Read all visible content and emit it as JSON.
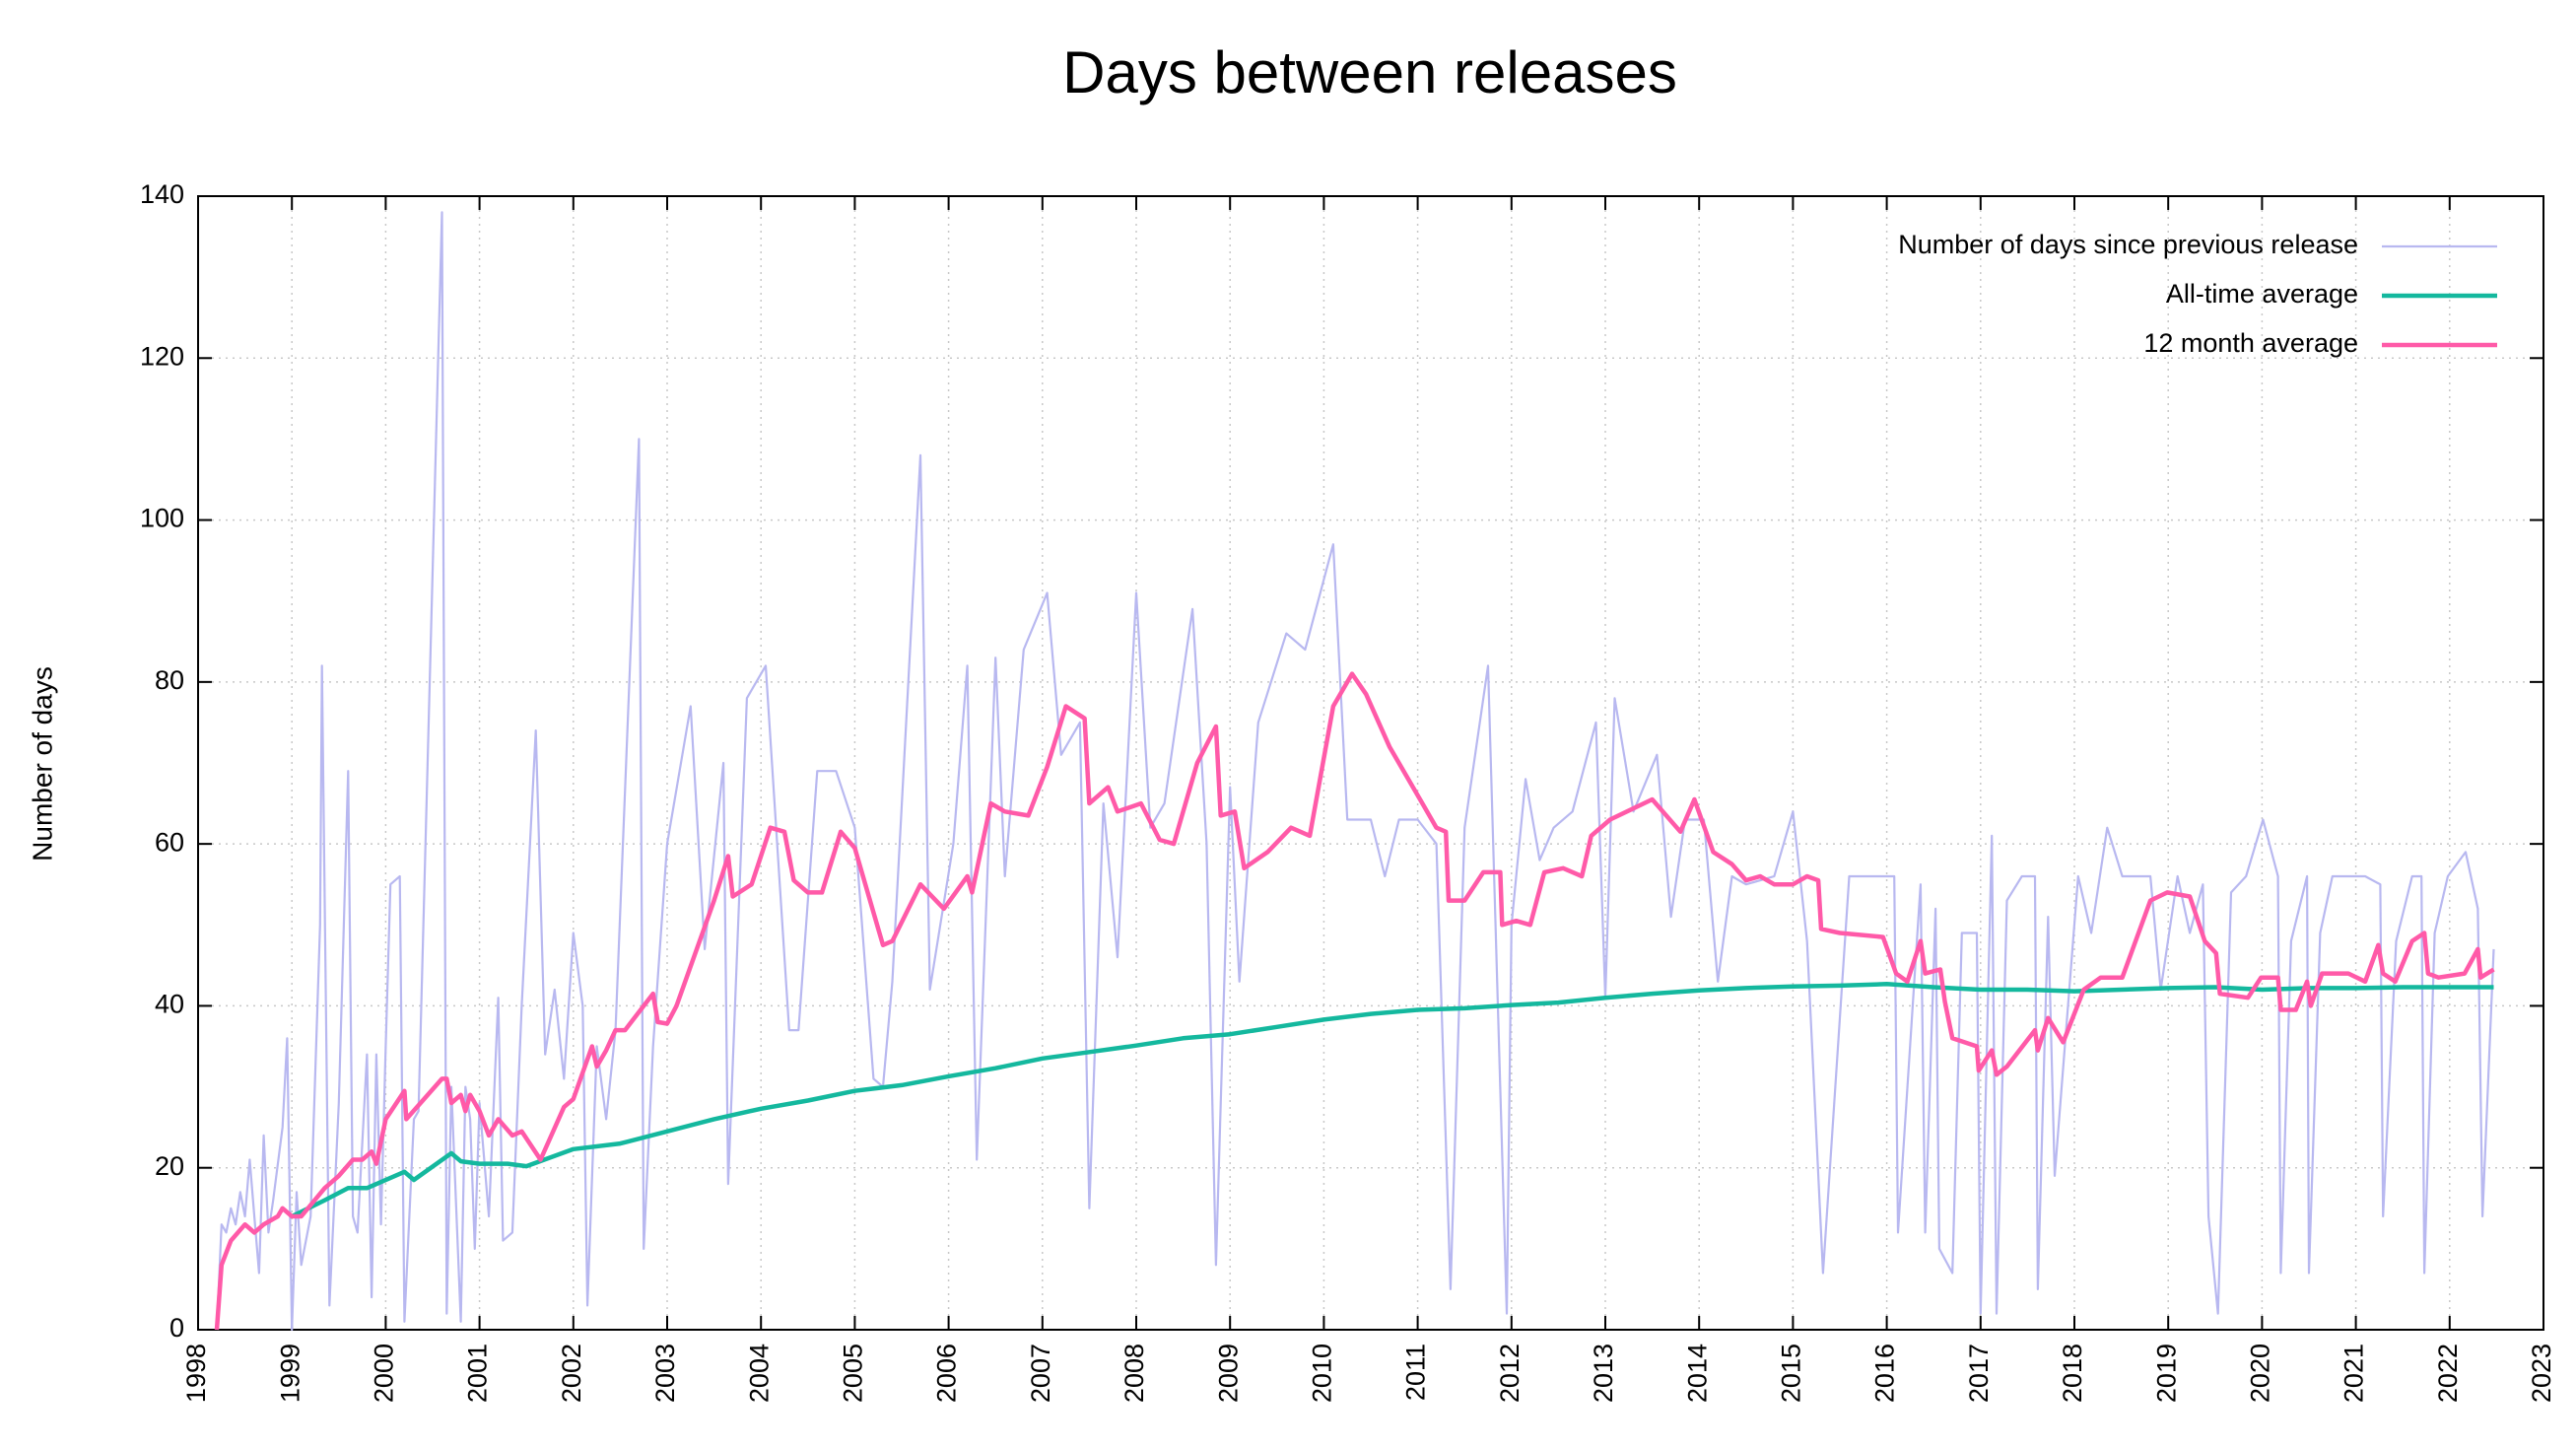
{
  "chart_data": {
    "type": "line",
    "title": "Days between releases",
    "y_label": "Number of days",
    "xlim": [
      1998,
      2023
    ],
    "xticks": [
      1998,
      1999,
      2000,
      2001,
      2002,
      2003,
      2004,
      2005,
      2006,
      2007,
      2008,
      2009,
      2010,
      2011,
      2012,
      2013,
      2014,
      2015,
      2016,
      2017,
      2018,
      2019,
      2020,
      2021,
      2022,
      2023
    ],
    "ylim": [
      0,
      140
    ],
    "yticks": [
      0,
      20,
      40,
      60,
      80,
      100,
      120,
      140
    ],
    "grid": true,
    "legend": "top-right",
    "series": [
      {
        "name": "Number of days since previous release",
        "color": "#b8b8f0",
        "x": [
          1998.2,
          1998.25,
          1998.3,
          1998.35,
          1998.4,
          1998.45,
          1998.5,
          1998.55,
          1998.6,
          1998.65,
          1998.7,
          1998.75,
          1998.8,
          1998.9,
          1998.95,
          1999.0,
          1999.05,
          1999.1,
          1999.2,
          1999.3,
          1999.32,
          1999.4,
          1999.5,
          1999.6,
          1999.65,
          1999.7,
          1999.8,
          1999.85,
          1999.9,
          1999.95,
          2000.0,
          2000.05,
          2000.15,
          2000.2,
          2000.3,
          2000.35,
          2000.6,
          2000.65,
          2000.7,
          2000.8,
          2000.85,
          2000.9,
          2000.95,
          2001.0,
          2001.1,
          2001.2,
          2001.25,
          2001.35,
          2001.45,
          2001.6,
          2001.7,
          2001.8,
          2001.9,
          2002.0,
          2002.1,
          2002.15,
          2002.25,
          2002.35,
          2002.45,
          2002.7,
          2002.75,
          2002.85,
          2003.0,
          2003.25,
          2003.4,
          2003.6,
          2003.65,
          2003.85,
          2004.05,
          2004.3,
          2004.4,
          2004.6,
          2004.8,
          2005.0,
          2005.2,
          2005.3,
          2005.4,
          2005.7,
          2005.8,
          2006.05,
          2006.2,
          2006.3,
          2006.5,
          2006.6,
          2006.8,
          2007.05,
          2007.2,
          2007.4,
          2007.5,
          2007.65,
          2007.8,
          2008.0,
          2008.15,
          2008.3,
          2008.6,
          2008.75,
          2008.85,
          2009.0,
          2009.1,
          2009.3,
          2009.6,
          2009.8,
          2010.1,
          2010.25,
          2010.5,
          2010.65,
          2010.8,
          2011.0,
          2011.2,
          2011.35,
          2011.5,
          2011.75,
          2011.95,
          2012.0,
          2012.15,
          2012.3,
          2012.45,
          2012.65,
          2012.9,
          2013.0,
          2013.1,
          2013.3,
          2013.55,
          2013.7,
          2013.85,
          2014.05,
          2014.2,
          2014.35,
          2014.5,
          2014.8,
          2015.0,
          2015.15,
          2015.32,
          2015.6,
          2016.08,
          2016.12,
          2016.36,
          2016.41,
          2016.52,
          2016.56,
          2016.7,
          2016.8,
          2016.96,
          2017.0,
          2017.12,
          2017.17,
          2017.28,
          2017.44,
          2017.58,
          2017.61,
          2017.72,
          2017.79,
          2018.04,
          2018.18,
          2018.35,
          2018.51,
          2018.81,
          2018.92,
          2019.1,
          2019.23,
          2019.37,
          2019.43,
          2019.53,
          2019.67,
          2019.83,
          2020.01,
          2020.17,
          2020.2,
          2020.31,
          2020.48,
          2020.5,
          2020.62,
          2020.75,
          2021.1,
          2021.26,
          2021.29,
          2021.43,
          2021.6,
          2021.7,
          2021.73,
          2021.84,
          2021.98,
          2022.17,
          2022.3,
          2022.35,
          2022.47
        ],
        "values": [
          0,
          13,
          12,
          15,
          13,
          17,
          14,
          21,
          14,
          7,
          24,
          12,
          16,
          25,
          36,
          0,
          17,
          8,
          14,
          50,
          82,
          3,
          28,
          69,
          14,
          12,
          34,
          4,
          34,
          13,
          35,
          55,
          56,
          1,
          26,
          27,
          138,
          2,
          30,
          1,
          30,
          26,
          10,
          28,
          14,
          41,
          11,
          12,
          40,
          74,
          34,
          42,
          31,
          49,
          40,
          3,
          35,
          26,
          37,
          110,
          10,
          35,
          60,
          77,
          47,
          70,
          18,
          78,
          82,
          37,
          37,
          69,
          69,
          62,
          31,
          30,
          43,
          108,
          42,
          60,
          82,
          21,
          83,
          56,
          84,
          91,
          71,
          75,
          15,
          65,
          46,
          91,
          62,
          65,
          89,
          60,
          8,
          67,
          43,
          75,
          86,
          84,
          97,
          63,
          63,
          56,
          63,
          63,
          60,
          5,
          62,
          82,
          2,
          50,
          68,
          58,
          62,
          64,
          75,
          41,
          78,
          64,
          71,
          51,
          63,
          63,
          43,
          56,
          55,
          56,
          64,
          48,
          7,
          56,
          56,
          12,
          55,
          12,
          52,
          10,
          7,
          49,
          49,
          2,
          61,
          2,
          53,
          56,
          56,
          5,
          51,
          19,
          56,
          49,
          62,
          56,
          56,
          42,
          56,
          49,
          55,
          14,
          2,
          54,
          56,
          63,
          56,
          7,
          48,
          56,
          7,
          49,
          56,
          56,
          55,
          14,
          48,
          56,
          56,
          7,
          49,
          56,
          59,
          52,
          14,
          47
        ]
      },
      {
        "name": "All-time average",
        "color": "#14b89e",
        "x": [
          1999.0,
          1999.35,
          1999.6,
          1999.8,
          2000.2,
          2000.3,
          2000.7,
          2000.8,
          2001.0,
          2001.3,
          2001.5,
          2002.0,
          2002.5,
          2003.0,
          2003.5,
          2004.0,
          2004.5,
          2005.0,
          2005.5,
          2006.0,
          2006.5,
          2007.0,
          2007.5,
          2008.0,
          2008.5,
          2009.0,
          2009.5,
          2010.0,
          2010.5,
          2011.0,
          2011.5,
          2012.0,
          2012.5,
          2013.0,
          2013.5,
          2014.0,
          2014.5,
          2015.0,
          2015.5,
          2016.0,
          2016.5,
          2017.0,
          2017.5,
          2018.0,
          2018.5,
          2019.0,
          2019.5,
          2020.0,
          2020.5,
          2021.0,
          2021.5,
          2022.0,
          2022.47
        ],
        "values": [
          14,
          16,
          17.5,
          17.5,
          19.5,
          18.5,
          21.8,
          20.8,
          20.5,
          20.5,
          20.2,
          22.3,
          23,
          24.5,
          26,
          27.3,
          28.3,
          29.5,
          30.2,
          31.3,
          32.3,
          33.5,
          34.3,
          35.1,
          36,
          36.5,
          37.4,
          38.3,
          39,
          39.5,
          39.7,
          40.1,
          40.4,
          41,
          41.5,
          41.9,
          42.2,
          42.4,
          42.5,
          42.7,
          42.3,
          42,
          42,
          41.8,
          42,
          42.2,
          42.3,
          42,
          42.2,
          42.2,
          42.3,
          42.3,
          42.3
        ]
      },
      {
        "name": "12 month average",
        "color": "#ff5aa8",
        "x": [
          1998.2,
          1998.25,
          1998.35,
          1998.5,
          1998.6,
          1998.7,
          1998.85,
          1998.9,
          1999.0,
          1999.1,
          1999.35,
          1999.5,
          1999.65,
          1999.75,
          1999.85,
          1999.9,
          2000.0,
          2000.2,
          2000.22,
          2000.6,
          2000.65,
          2000.7,
          2000.8,
          2000.85,
          2000.9,
          2001.0,
          2001.1,
          2001.2,
          2001.35,
          2001.45,
          2001.65,
          2001.9,
          2002.0,
          2002.2,
          2002.25,
          2002.35,
          2002.45,
          2002.55,
          2002.85,
          2002.9,
          2003.0,
          2003.1,
          2003.5,
          2003.65,
          2003.7,
          2003.9,
          2004.1,
          2004.25,
          2004.35,
          2004.5,
          2004.65,
          2004.85,
          2005.0,
          2005.3,
          2005.4,
          2005.7,
          2005.95,
          2006.2,
          2006.25,
          2006.45,
          2006.6,
          2006.85,
          2007.05,
          2007.25,
          2007.45,
          2007.5,
          2007.7,
          2007.8,
          2008.05,
          2008.25,
          2008.4,
          2008.65,
          2008.85,
          2008.9,
          2009.05,
          2009.15,
          2009.4,
          2009.65,
          2009.85,
          2010.1,
          2010.3,
          2010.45,
          2010.7,
          2011.05,
          2011.2,
          2011.3,
          2011.33,
          2011.5,
          2011.7,
          2011.88,
          2011.9,
          2012.05,
          2012.2,
          2012.35,
          2012.55,
          2012.75,
          2012.85,
          2013.05,
          2013.5,
          2013.8,
          2013.95,
          2014.15,
          2014.35,
          2014.5,
          2014.65,
          2014.8,
          2015.0,
          2015.15,
          2015.27,
          2015.3,
          2015.5,
          2015.96,
          2016.1,
          2016.22,
          2016.36,
          2016.41,
          2016.57,
          2016.62,
          2016.7,
          2016.96,
          2016.98,
          2017.12,
          2017.17,
          2017.28,
          2017.58,
          2017.61,
          2017.72,
          2017.88,
          2018.1,
          2018.28,
          2018.51,
          2018.81,
          2018.99,
          2019.23,
          2019.39,
          2019.51,
          2019.55,
          2019.85,
          2019.99,
          2020.17,
          2020.2,
          2020.36,
          2020.48,
          2020.52,
          2020.64,
          2020.92,
          2021.1,
          2021.24,
          2021.29,
          2021.42,
          2021.6,
          2021.73,
          2021.77,
          2021.88,
          2022.16,
          2022.3,
          2022.33,
          2022.47
        ],
        "values": [
          0,
          8,
          11,
          13,
          12,
          13,
          14,
          15,
          14,
          14,
          17.5,
          19,
          21,
          21,
          22,
          20.5,
          26,
          29.5,
          26,
          31,
          31,
          28,
          29,
          27,
          29,
          27,
          24,
          26,
          24,
          24.5,
          21,
          27.5,
          28.5,
          35,
          32.5,
          34.5,
          37,
          37,
          41.5,
          38,
          37.8,
          40,
          53,
          58.5,
          53.5,
          55,
          62,
          61.5,
          55.5,
          54,
          54,
          61.5,
          59.5,
          47.5,
          48,
          55,
          52,
          56,
          54,
          65,
          64,
          63.5,
          69.5,
          77,
          75.5,
          65,
          67,
          64,
          65,
          60.5,
          60,
          70,
          74.5,
          63.5,
          64,
          57,
          59,
          62,
          61,
          77,
          81,
          78.5,
          72,
          65,
          62,
          61.5,
          53,
          53,
          56.5,
          56.5,
          50,
          50.5,
          50,
          56.5,
          57,
          56,
          61,
          63,
          65.5,
          61.5,
          65.5,
          59,
          57.5,
          55.5,
          56,
          55,
          55,
          56,
          55.5,
          49.5,
          49,
          48.5,
          44,
          43,
          48,
          44,
          44.5,
          40.5,
          36,
          35,
          32,
          34.5,
          31.5,
          32.5,
          37,
          34.5,
          38.5,
          35.5,
          42,
          43.5,
          43.5,
          53,
          54,
          53.5,
          48,
          46.5,
          41.5,
          41,
          43.5,
          43.5,
          39.5,
          39.5,
          43,
          40,
          44,
          44,
          43,
          47.5,
          44,
          43,
          48,
          49,
          44,
          43.5,
          44,
          47,
          43.5,
          44.5
        ]
      }
    ]
  }
}
